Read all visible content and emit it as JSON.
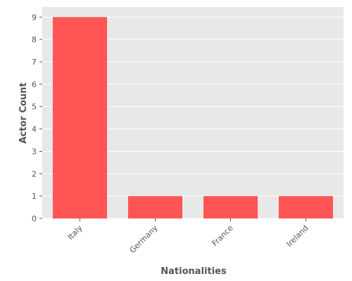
{
  "chart_data": {
    "type": "bar",
    "categories": [
      "Italy",
      "Germany",
      "France",
      "Ireland"
    ],
    "values": [
      9,
      1,
      1,
      1
    ],
    "xlabel": "Nationalities",
    "ylabel": "Actor Count",
    "ylim": [
      0,
      9.45
    ],
    "yticks": [
      0,
      1,
      2,
      3,
      4,
      5,
      6,
      7,
      8,
      9
    ],
    "grid": true,
    "x_tick_rotation": "45 degrees",
    "colors": {
      "bar": "#ff5555",
      "plot_background": "#e8e8e8",
      "grid": "#ffffff",
      "text": "#555555"
    }
  }
}
